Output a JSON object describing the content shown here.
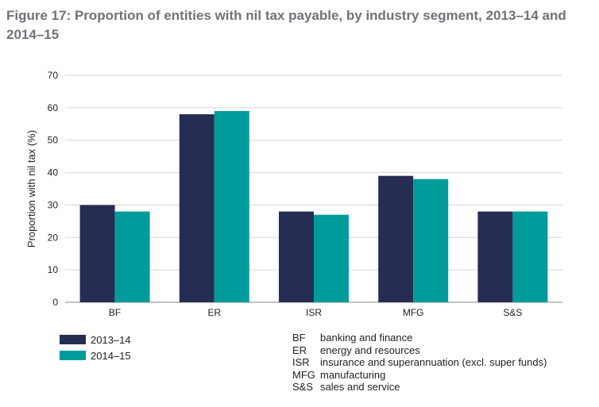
{
  "title": "Figure 17: Proportion of entities with nil tax payable, by industry segment, 2013–14 and 2014–15",
  "colors": {
    "series1": "#262d52",
    "series2": "#009c9c",
    "grid": "#d6d6d6"
  },
  "chart_data": {
    "type": "bar",
    "title": "Figure 17: Proportion of entities with nil tax payable, by industry segment, 2013–14 and 2014–15",
    "xlabel": "",
    "ylabel": "Proportion with nil tax (%)",
    "ylim": [
      0,
      70
    ],
    "yticks": [
      0,
      10,
      20,
      30,
      40,
      50,
      60,
      70
    ],
    "grid": true,
    "legend": "bottom-left",
    "categories": [
      "BF",
      "ER",
      "ISR",
      "MFG",
      "S&S"
    ],
    "series": [
      {
        "name": "2013–14",
        "values": [
          30,
          58,
          28,
          39,
          28
        ]
      },
      {
        "name": "2014–15",
        "values": [
          28,
          59,
          27,
          38,
          28
        ]
      }
    ]
  },
  "abbreviations": [
    {
      "code": "BF",
      "meaning": "banking and finance"
    },
    {
      "code": "ER",
      "meaning": "energy and resources"
    },
    {
      "code": "ISR",
      "meaning": "insurance and superannuation (excl. super funds)"
    },
    {
      "code": "MFG",
      "meaning": "manufacturing"
    },
    {
      "code": "S&S",
      "meaning": "sales and service"
    }
  ]
}
